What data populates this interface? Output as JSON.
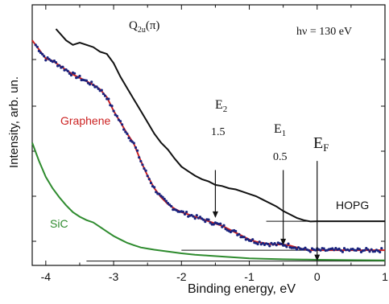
{
  "chart_data": {
    "type": "line",
    "title": "",
    "xlabel": "Binding energy, eV",
    "ylabel": "Intensity, arb. un.",
    "xlim": [
      -4.2,
      1.0
    ],
    "ylim": [
      0,
      100
    ],
    "x_ticks": [
      "-4",
      "-3",
      "-2",
      "-1",
      "0",
      "1"
    ],
    "grid": false,
    "legend": "none",
    "annotations": {
      "photon_energy": "hν = 130 eV",
      "q2u_main": "Q",
      "q2u_sub": "2u",
      "q2u_tail": "(π)",
      "e2_label": "E",
      "e2_sub": "2",
      "e2_value": "1.5",
      "e1_label": "E",
      "e1_sub": "1",
      "e1_value": "0.5",
      "ef_label": "E",
      "ef_sub": "F"
    },
    "markers": [
      {
        "name": "E2",
        "x": -1.5,
        "y_top": 38,
        "y_bottom": 17
      },
      {
        "name": "E1",
        "x": -0.5,
        "y_top": 38,
        "y_bottom": 5
      },
      {
        "name": "EF",
        "x": 0.0,
        "y_top": 42,
        "y_bottom": -2
      }
    ],
    "baselines": [
      {
        "name": "HOPG",
        "x_start": -0.75,
        "x_end": 1.0,
        "y": 15.5
      },
      {
        "name": "Graphene",
        "x_start": -2.0,
        "x_end": 1.0,
        "y": 2.8
      },
      {
        "name": "SiC",
        "x_start": -3.4,
        "x_end": 1.0,
        "y": -2.0
      }
    ],
    "series": [
      {
        "name": "HOPG",
        "color": "#111111",
        "x": [
          -3.85,
          -3.7,
          -3.6,
          -3.5,
          -3.4,
          -3.3,
          -3.2,
          -3.1,
          -3.0,
          -2.9,
          -2.8,
          -2.7,
          -2.6,
          -2.5,
          -2.4,
          -2.3,
          -2.2,
          -2.1,
          -2.0,
          -1.9,
          -1.8,
          -1.7,
          -1.6,
          -1.5,
          -1.4,
          -1.3,
          -1.2,
          -1.1,
          -1.0,
          -0.9,
          -0.8,
          -0.7,
          -0.6,
          -0.5,
          -0.4,
          -0.3,
          -0.2,
          -0.1,
          0.0,
          0.2,
          0.4,
          0.6,
          0.8,
          1.0
        ],
        "y": [
          100,
          95,
          93,
          94,
          93,
          92,
          90,
          89,
          85,
          79,
          74,
          69,
          64,
          59,
          54,
          50,
          47,
          43,
          39.5,
          37.5,
          35.5,
          34,
          33,
          31.5,
          31,
          30,
          29.5,
          28.5,
          27.5,
          26.5,
          25,
          23.5,
          22,
          20,
          18.5,
          17,
          16,
          15.4,
          15.5,
          15.5,
          15.5,
          15.5,
          15.5,
          15.5
        ]
      },
      {
        "name": "Graphene",
        "color": "#cc2222",
        "points_color": "#1a237e",
        "x": [
          -4.2,
          -4.1,
          -4.0,
          -3.9,
          -3.8,
          -3.7,
          -3.6,
          -3.5,
          -3.4,
          -3.3,
          -3.2,
          -3.1,
          -3.0,
          -2.9,
          -2.8,
          -2.7,
          -2.6,
          -2.5,
          -2.4,
          -2.3,
          -2.2,
          -2.1,
          -2.0,
          -1.9,
          -1.8,
          -1.7,
          -1.6,
          -1.5,
          -1.4,
          -1.3,
          -1.2,
          -1.1,
          -1.0,
          -0.9,
          -0.8,
          -0.7,
          -0.6,
          -0.5,
          -0.4,
          -0.3,
          -0.2,
          -0.1,
          0.0,
          0.2,
          0.4,
          0.6,
          0.8,
          1.0
        ],
        "y": [
          95,
          91,
          87,
          86,
          84,
          82,
          80,
          78.5,
          77,
          75.5,
          73.5,
          70,
          64,
          59,
          54,
          49.5,
          42,
          35.5,
          30,
          26,
          23,
          21,
          19.5,
          18.5,
          17.5,
          16.5,
          15.5,
          14.5,
          13.5,
          12,
          10.5,
          9,
          7.5,
          6.5,
          6,
          5.5,
          5.3,
          5.3,
          4.8,
          4.0,
          3.2,
          2.8,
          2.8,
          2.8,
          2.8,
          2.8,
          2.8,
          2.8
        ]
      },
      {
        "name": "SiC",
        "color": "#2e8b2e",
        "x": [
          -4.2,
          -4.1,
          -4.0,
          -3.9,
          -3.8,
          -3.7,
          -3.6,
          -3.5,
          -3.4,
          -3.3,
          -3.2,
          -3.1,
          -3.0,
          -2.9,
          -2.8,
          -2.7,
          -2.6,
          -2.5,
          -2.4,
          -2.2,
          -2.0,
          -1.8,
          -1.6,
          -1.4,
          -1.2,
          -1.0,
          -0.8,
          -0.5,
          -0.2,
          0.0,
          0.3,
          0.6,
          1.0
        ],
        "y": [
          50,
          42,
          35,
          30,
          26,
          22.5,
          19.5,
          17.5,
          16,
          15,
          13,
          11,
          9,
          7.5,
          6,
          5,
          4,
          3.5,
          3,
          2.2,
          1.4,
          0.8,
          0.4,
          0.0,
          -0.4,
          -0.8,
          -1.0,
          -1.2,
          -1.3,
          -1.4,
          -1.5,
          -1.6,
          -1.7
        ]
      }
    ],
    "series_labels": {
      "hopg": "HOPG",
      "graphene": "Graphene",
      "sic": "SiC"
    }
  }
}
